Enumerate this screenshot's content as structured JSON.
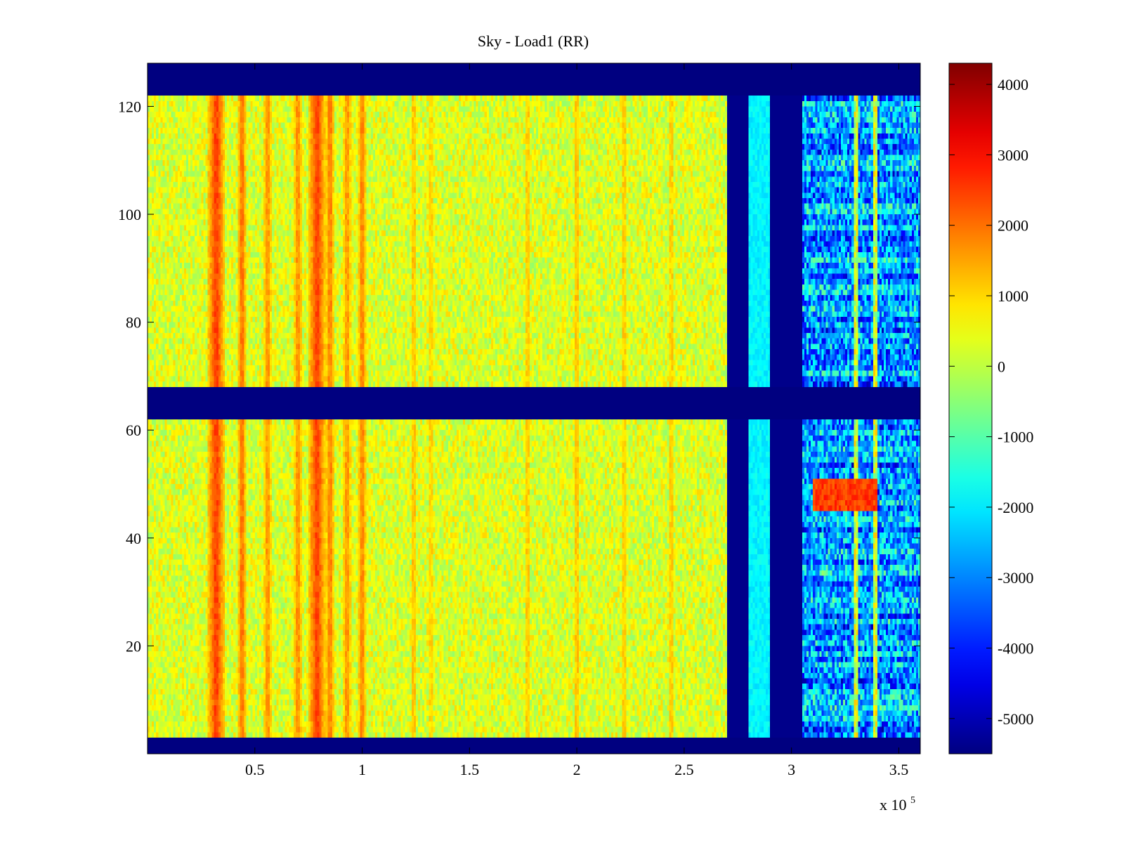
{
  "chart_data": {
    "type": "heatmap",
    "title": "Sky - Load1 (RR)",
    "xlabel": "",
    "ylabel": "",
    "x_exponent_label": "x 10",
    "x_exponent_power": "5",
    "xlim": [
      0,
      360000
    ],
    "ylim": [
      0,
      128
    ],
    "x_ticks": [
      {
        "value": 50000,
        "label": "0.5"
      },
      {
        "value": 100000,
        "label": "1"
      },
      {
        "value": 150000,
        "label": "1.5"
      },
      {
        "value": 200000,
        "label": "2"
      },
      {
        "value": 250000,
        "label": "2.5"
      },
      {
        "value": 300000,
        "label": "3"
      },
      {
        "value": 350000,
        "label": "3.5"
      }
    ],
    "y_ticks": [
      {
        "value": 20,
        "label": "20"
      },
      {
        "value": 40,
        "label": "40"
      },
      {
        "value": 60,
        "label": "60"
      },
      {
        "value": 80,
        "label": "80"
      },
      {
        "value": 100,
        "label": "100"
      },
      {
        "value": 120,
        "label": "120"
      }
    ],
    "colorbar": {
      "colormap": "jet",
      "clim": [
        -5500,
        4300
      ],
      "ticks": [
        {
          "value": 4000,
          "label": "4000"
        },
        {
          "value": 3000,
          "label": "3000"
        },
        {
          "value": 2000,
          "label": "2000"
        },
        {
          "value": 1000,
          "label": "1000"
        },
        {
          "value": 0,
          "label": "0"
        },
        {
          "value": -1000,
          "label": "-1000"
        },
        {
          "value": -2000,
          "label": "-2000"
        },
        {
          "value": -3000,
          "label": "-3000"
        },
        {
          "value": -4000,
          "label": "-4000"
        },
        {
          "value": -5000,
          "label": "-5000"
        }
      ]
    },
    "masked_rows": [
      [
        0,
        3
      ],
      [
        62,
        68
      ],
      [
        122,
        128
      ]
    ],
    "regions": [
      {
        "x_range": [
          0,
          270000
        ],
        "value_mean": 300,
        "value_spread": 700
      },
      {
        "x_range": [
          270000,
          280000
        ],
        "value_mean": -5400,
        "value_spread": 0
      },
      {
        "x_range": [
          280000,
          290000
        ],
        "value_mean": -1900,
        "value_spread": 300
      },
      {
        "x_range": [
          290000,
          305000
        ],
        "value_mean": -5400,
        "value_spread": 0
      },
      {
        "x_range": [
          305000,
          360000
        ],
        "value_mean": -2800,
        "value_spread": 1500
      }
    ],
    "hot_bands": [
      {
        "x": 32000,
        "width": 4000,
        "value": 2600
      },
      {
        "x": 44000,
        "width": 2000,
        "value": 2200
      },
      {
        "x": 56000,
        "width": 2000,
        "value": 1800
      },
      {
        "x": 70000,
        "width": 2000,
        "value": 1900
      },
      {
        "x": 79000,
        "width": 4000,
        "value": 2600
      },
      {
        "x": 85000,
        "width": 2000,
        "value": 2000
      },
      {
        "x": 93000,
        "width": 2000,
        "value": 1800
      },
      {
        "x": 100000,
        "width": 2000,
        "value": 2000
      },
      {
        "x": 124000,
        "width": 1000,
        "value": 1600
      },
      {
        "x": 132000,
        "width": 1000,
        "value": 1400
      },
      {
        "x": 177000,
        "width": 1000,
        "value": 1500
      },
      {
        "x": 200000,
        "width": 1000,
        "value": 1600
      },
      {
        "x": 222000,
        "width": 1000,
        "value": 1500
      },
      {
        "x": 244000,
        "width": 1000,
        "value": 1500
      },
      {
        "x": 330000,
        "width": 1000,
        "value": 1200
      },
      {
        "x": 339000,
        "width": 1000,
        "value": 1200
      }
    ],
    "hot_patch": {
      "x_range": [
        310000,
        340000
      ],
      "y_range": [
        45,
        51
      ],
      "value": 2500
    }
  }
}
